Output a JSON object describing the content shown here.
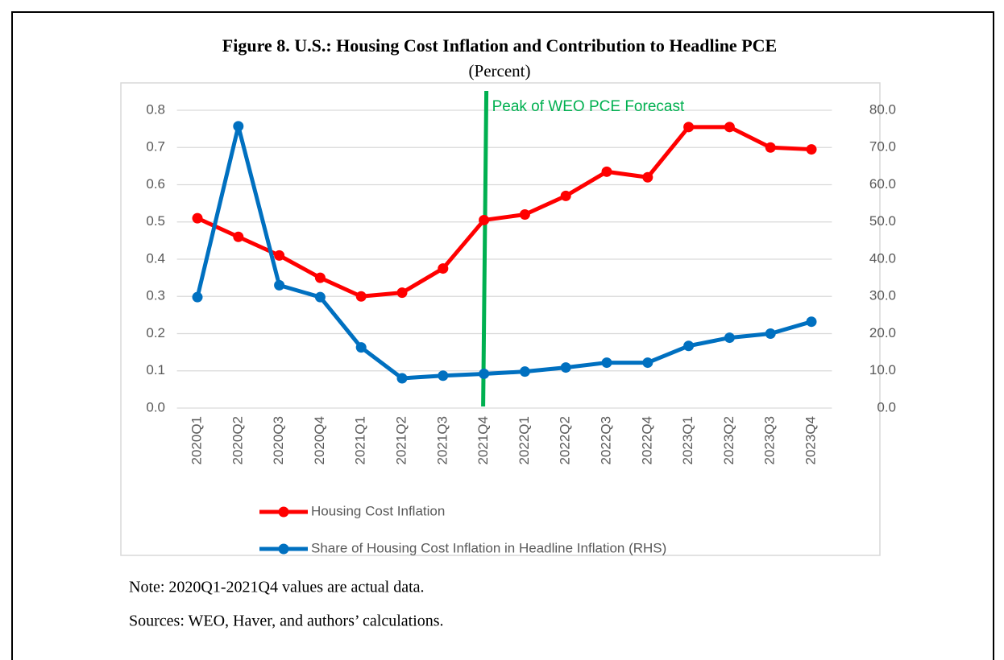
{
  "chart_data": {
    "type": "line",
    "title": "Figure 8. U.S.: Housing Cost Inflation and Contribution to Headline PCE",
    "subtitle": "(Percent)",
    "categories": [
      "2020Q1",
      "2020Q2",
      "2020Q3",
      "2020Q4",
      "2021Q1",
      "2021Q2",
      "2021Q3",
      "2021Q4",
      "2022Q1",
      "2022Q2",
      "2022Q3",
      "2022Q4",
      "2023Q1",
      "2023Q2",
      "2023Q3",
      "2023Q4"
    ],
    "series": [
      {
        "name": "Housing Cost Inflation",
        "color": "#ff0000",
        "axis": "y",
        "values": [
          0.51,
          0.46,
          0.41,
          0.35,
          0.3,
          0.31,
          0.375,
          0.505,
          0.52,
          0.57,
          0.635,
          0.62,
          0.755,
          0.755,
          0.7,
          0.695
        ]
      },
      {
        "name": "Share of Housing Cost Inflation in Headline Inflation (RHS)",
        "color": "#0070c0",
        "axis": "y2",
        "values": [
          29.8,
          75.7,
          33.0,
          29.8,
          16.3,
          8.0,
          8.7,
          9.2,
          9.8,
          10.9,
          12.2,
          12.2,
          16.7,
          18.9,
          20.0,
          23.2
        ]
      }
    ],
    "ylim": [
      0,
      0.8
    ],
    "yticks": [
      {
        "value": 0,
        "label": "0.0"
      },
      0.1,
      0.2,
      0.3,
      0.4,
      0.5,
      0.6,
      0.7,
      0.8
    ],
    "y2lim": [
      0,
      80
    ],
    "y2ticks": [
      {
        "value": 0,
        "label": "0.0"
      },
      {
        "value": 10,
        "label": "10.0"
      },
      {
        "value": 20,
        "label": "20.0"
      },
      {
        "value": 30,
        "label": "30.0"
      },
      {
        "value": 40,
        "label": "40.0"
      },
      {
        "value": 50,
        "label": "50.0"
      },
      {
        "value": 60,
        "label": "60.0"
      },
      {
        "value": 70,
        "label": "70.0"
      },
      {
        "value": 80,
        "label": "80.0"
      }
    ],
    "grid": true,
    "legend": "bottom",
    "annotation": {
      "text": "Peak of WEO PCE Forecast",
      "x": "2021Q4",
      "color": "#00b050"
    }
  },
  "notes": [
    "Note: 2020Q1-2021Q4 values are actual data.",
    "Sources: WEO, Haver, and authors’ calculations."
  ]
}
